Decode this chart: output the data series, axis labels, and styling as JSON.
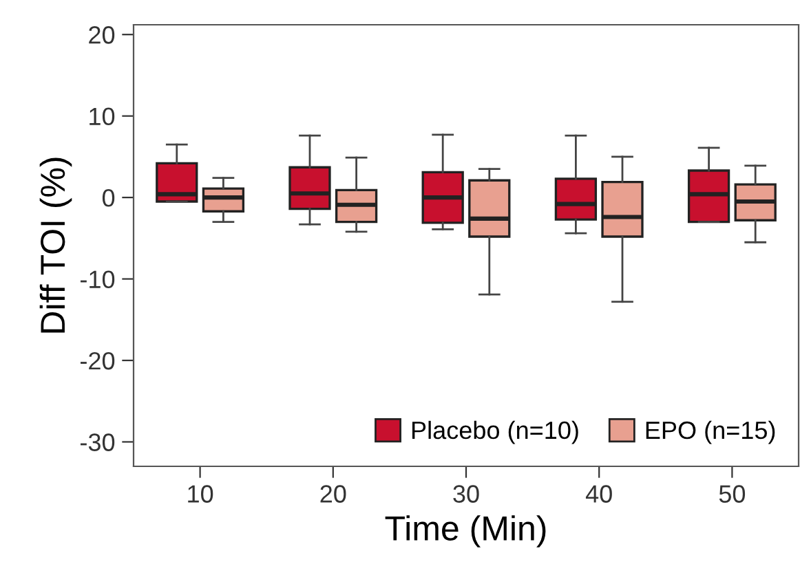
{
  "chart_data": {
    "type": "box",
    "xlabel": "Time (Min)",
    "ylabel": "Diff TOI (%)",
    "categories": [
      "10",
      "20",
      "30",
      "40",
      "50"
    ],
    "ylim": [
      -33,
      21.2
    ],
    "yticks": [
      -30,
      -20,
      -10,
      0,
      10,
      20
    ],
    "grid": false,
    "legend": "bottom right",
    "series": [
      {
        "name": "Placebo (n=10)",
        "color": "#c8102e",
        "boxes": [
          {
            "low": -0.5,
            "q1": -0.5,
            "median": 0.4,
            "q3": 4.2,
            "high": 6.5
          },
          {
            "low": -3.3,
            "q1": -1.4,
            "median": 0.5,
            "q3": 3.7,
            "high": 7.6
          },
          {
            "low": -3.9,
            "q1": -3.1,
            "median": 0.0,
            "q3": 3.1,
            "high": 7.7
          },
          {
            "low": -4.4,
            "q1": -2.7,
            "median": -0.8,
            "q3": 2.3,
            "high": 7.6
          },
          {
            "low": -3.0,
            "q1": -3.0,
            "median": 0.4,
            "q3": 3.3,
            "high": 6.1
          }
        ]
      },
      {
        "name": "EPO (n=15)",
        "color": "#e8a090",
        "boxes": [
          {
            "low": -3.0,
            "q1": -1.7,
            "median": 0.0,
            "q3": 1.1,
            "high": 2.4
          },
          {
            "low": -4.2,
            "q1": -3.0,
            "median": -0.9,
            "q3": 0.9,
            "high": 4.9
          },
          {
            "low": -11.9,
            "q1": -4.8,
            "median": -2.6,
            "q3": 2.1,
            "high": 3.5
          },
          {
            "low": -12.8,
            "q1": -4.8,
            "median": -2.4,
            "q3": 1.9,
            "high": 5.0
          },
          {
            "low": -5.5,
            "q1": -2.8,
            "median": -0.5,
            "q3": 1.6,
            "high": 3.9
          }
        ]
      }
    ]
  }
}
